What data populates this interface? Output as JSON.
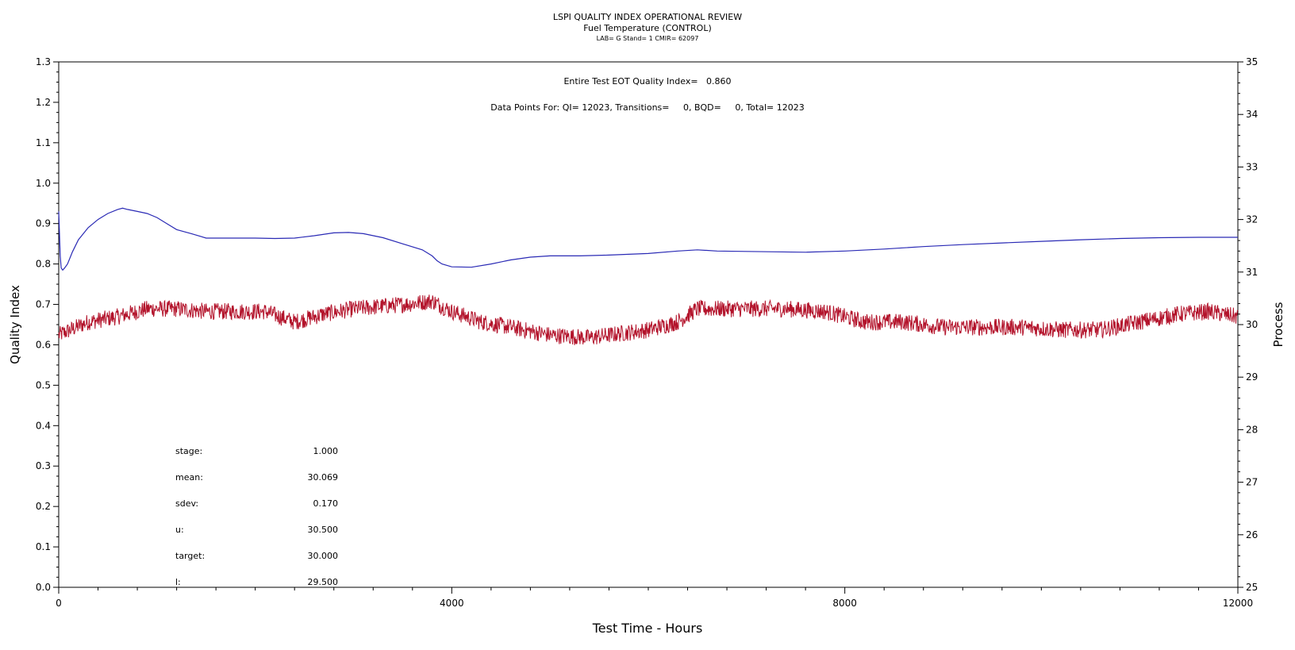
{
  "header": {
    "title": "LSPI QUALITY INDEX OPERATIONAL REVIEW",
    "subtitle": "Fuel Temperature (CONTROL)",
    "info": "LAB= G Stand= 1 CMIR= 62097"
  },
  "annotations": {
    "qi_line": "Entire Test EOT Quality Index=   0.860",
    "points_line": "Data Points For: QI= 12023, Transitions=     0, BQD=     0, Total= 12023"
  },
  "stats": [
    {
      "label": "stage:",
      "value": "1.000"
    },
    {
      "label": "mean:",
      "value": "30.069"
    },
    {
      "label": "sdev:",
      "value": "0.170"
    },
    {
      "label": "u:",
      "value": "30.500"
    },
    {
      "label": "target:",
      "value": "30.000"
    },
    {
      "label": "l:",
      "value": "29.500"
    }
  ],
  "colors": {
    "quality_line": "#2a2ab5",
    "process_line": "#b3132b",
    "axis": "#000000"
  },
  "chart_data": {
    "type": "line",
    "xlabel": "Test Time - Hours",
    "ylabel": "Quality Index",
    "y2label": "Process",
    "xlim": [
      0,
      12000
    ],
    "ylim": [
      0.0,
      1.3
    ],
    "y2lim": [
      25,
      35
    ],
    "x_ticks": [
      0,
      4000,
      8000,
      12000
    ],
    "y_ticks": [
      0.0,
      0.1,
      0.2,
      0.3,
      0.4,
      0.5,
      0.6,
      0.7,
      0.8,
      0.9,
      1.0,
      1.1,
      1.2,
      1.3
    ],
    "y2_ticks": [
      25,
      26,
      27,
      28,
      29,
      30,
      31,
      32,
      33,
      34,
      35
    ],
    "grid": false,
    "series": [
      {
        "axis": "left",
        "color": "#2a2ab5",
        "x": [
          0,
          15,
          25,
          40,
          60,
          90,
          140,
          200,
          300,
          400,
          500,
          600,
          650,
          700,
          800,
          900,
          1000,
          1100,
          1200,
          1350,
          1500,
          1700,
          2000,
          2200,
          2400,
          2600,
          2800,
          2950,
          3100,
          3300,
          3500,
          3700,
          3800,
          3850,
          3900,
          4000,
          4200,
          4400,
          4600,
          4800,
          5000,
          5300,
          5600,
          6000,
          6300,
          6500,
          6700,
          7000,
          7300,
          7600,
          8000,
          8400,
          8800,
          9200,
          9600,
          10000,
          10400,
          10800,
          11200,
          11600,
          12000
        ],
        "values": [
          0.93,
          0.82,
          0.79,
          0.785,
          0.79,
          0.8,
          0.83,
          0.86,
          0.89,
          0.91,
          0.925,
          0.935,
          0.938,
          0.935,
          0.93,
          0.925,
          0.915,
          0.9,
          0.885,
          0.875,
          0.864,
          0.864,
          0.864,
          0.863,
          0.864,
          0.87,
          0.877,
          0.878,
          0.875,
          0.865,
          0.85,
          0.835,
          0.82,
          0.808,
          0.8,
          0.793,
          0.792,
          0.8,
          0.81,
          0.817,
          0.82,
          0.82,
          0.822,
          0.826,
          0.832,
          0.835,
          0.832,
          0.831,
          0.83,
          0.829,
          0.832,
          0.837,
          0.843,
          0.848,
          0.852,
          0.856,
          0.86,
          0.863,
          0.865,
          0.866,
          0.866
        ]
      },
      {
        "axis": "right",
        "color": "#b3132b",
        "x": [
          0,
          300,
          600,
          900,
          1200,
          1500,
          1800,
          2100,
          2400,
          2700,
          3000,
          3300,
          3600,
          3800,
          4000,
          4300,
          4600,
          5000,
          5400,
          5800,
          6000,
          6300,
          6500,
          6700,
          7000,
          7400,
          7800,
          8200,
          8600,
          9000,
          9400,
          9800,
          10200,
          10600,
          11000,
          11400,
          11700,
          12000
        ],
        "values": [
          29.8,
          30.05,
          30.15,
          30.3,
          30.3,
          30.25,
          30.25,
          30.25,
          30.05,
          30.2,
          30.3,
          30.35,
          30.4,
          30.45,
          30.25,
          30.05,
          29.95,
          29.8,
          29.75,
          29.85,
          29.9,
          30.05,
          30.3,
          30.3,
          30.3,
          30.3,
          30.25,
          30.05,
          30.05,
          29.95,
          29.95,
          29.95,
          29.9,
          29.9,
          30.05,
          30.2,
          30.25,
          30.15
        ]
      }
    ]
  }
}
